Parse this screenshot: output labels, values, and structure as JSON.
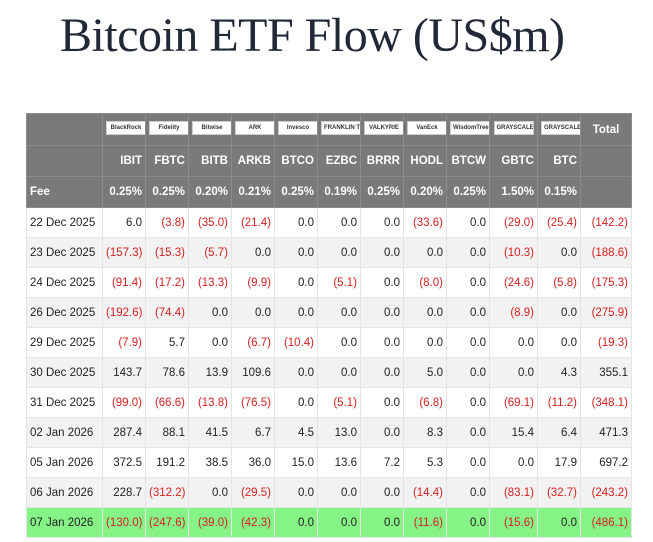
{
  "header": {
    "title": "Bitcoin ETF Flow (US$m)"
  },
  "table": {
    "logos": [
      "BlackRock",
      "Fidelity",
      "Bitwise",
      "ARK",
      "Invesco",
      "FRANKLIN TEMPLETON",
      "VALKYRIE",
      "VanEck",
      "WisdomTree",
      "GRAYSCALE",
      "GRAYSCALE"
    ],
    "total_label": "Total",
    "tickers": [
      "IBIT",
      "FBTC",
      "BITB",
      "ARKB",
      "BTCO",
      "EZBC",
      "BRRR",
      "HODL",
      "BTCW",
      "GBTC",
      "BTC"
    ],
    "fee_label": "Fee",
    "fees": [
      "0.25%",
      "0.25%",
      "0.20%",
      "0.21%",
      "0.25%",
      "0.19%",
      "0.25%",
      "0.20%",
      "0.25%",
      "1.50%",
      "0.15%"
    ],
    "rows": [
      {
        "date": "22 Dec 2025",
        "values": [
          "6.0",
          "(3.8)",
          "(35.0)",
          "(21.4)",
          "0.0",
          "0.0",
          "0.0",
          "(33.6)",
          "0.0",
          "(29.0)",
          "(25.4)",
          "(142.2)"
        ]
      },
      {
        "date": "23 Dec 2025",
        "values": [
          "(157.3)",
          "(15.3)",
          "(5.7)",
          "0.0",
          "0.0",
          "0.0",
          "0.0",
          "0.0",
          "0.0",
          "(10.3)",
          "0.0",
          "(188.6)"
        ]
      },
      {
        "date": "24 Dec 2025",
        "values": [
          "(91.4)",
          "(17.2)",
          "(13.3)",
          "(9.9)",
          "0.0",
          "(5.1)",
          "0.0",
          "(8.0)",
          "0.0",
          "(24.6)",
          "(5.8)",
          "(175.3)"
        ]
      },
      {
        "date": "26 Dec 2025",
        "values": [
          "(192.6)",
          "(74.4)",
          "0.0",
          "0.0",
          "0.0",
          "0.0",
          "0.0",
          "0.0",
          "0.0",
          "(8.9)",
          "0.0",
          "(275.9)"
        ]
      },
      {
        "date": "29 Dec 2025",
        "values": [
          "(7.9)",
          "5.7",
          "0.0",
          "(6.7)",
          "(10.4)",
          "0.0",
          "0.0",
          "0.0",
          "0.0",
          "0.0",
          "0.0",
          "(19.3)"
        ]
      },
      {
        "date": "30 Dec 2025",
        "values": [
          "143.7",
          "78.6",
          "13.9",
          "109.6",
          "0.0",
          "0.0",
          "0.0",
          "5.0",
          "0.0",
          "0.0",
          "4.3",
          "355.1"
        ]
      },
      {
        "date": "31 Dec 2025",
        "values": [
          "(99.0)",
          "(66.6)",
          "(13.8)",
          "(76.5)",
          "0.0",
          "(5.1)",
          "0.0",
          "(6.8)",
          "0.0",
          "(69.1)",
          "(11.2)",
          "(348.1)"
        ]
      },
      {
        "date": "02 Jan 2026",
        "values": [
          "287.4",
          "88.1",
          "41.5",
          "6.7",
          "4.5",
          "13.0",
          "0.0",
          "8.3",
          "0.0",
          "15.4",
          "6.4",
          "471.3"
        ]
      },
      {
        "date": "05 Jan 2026",
        "values": [
          "372.5",
          "191.2",
          "38.5",
          "36.0",
          "15.0",
          "13.6",
          "7.2",
          "5.3",
          "0.0",
          "0.0",
          "17.9",
          "697.2"
        ]
      },
      {
        "date": "06 Jan 2026",
        "values": [
          "228.7",
          "(312.2)",
          "0.0",
          "(29.5)",
          "0.0",
          "0.0",
          "0.0",
          "(14.4)",
          "0.0",
          "(83.1)",
          "(32.7)",
          "(243.2)"
        ]
      },
      {
        "date": "07 Jan 2026",
        "values": [
          "(130.0)",
          "(247.6)",
          "(39.0)",
          "(42.3)",
          "0.0",
          "0.0",
          "0.0",
          "(11.6)",
          "0.0",
          "(15.6)",
          "0.0",
          "(486.1)"
        ]
      }
    ]
  }
}
